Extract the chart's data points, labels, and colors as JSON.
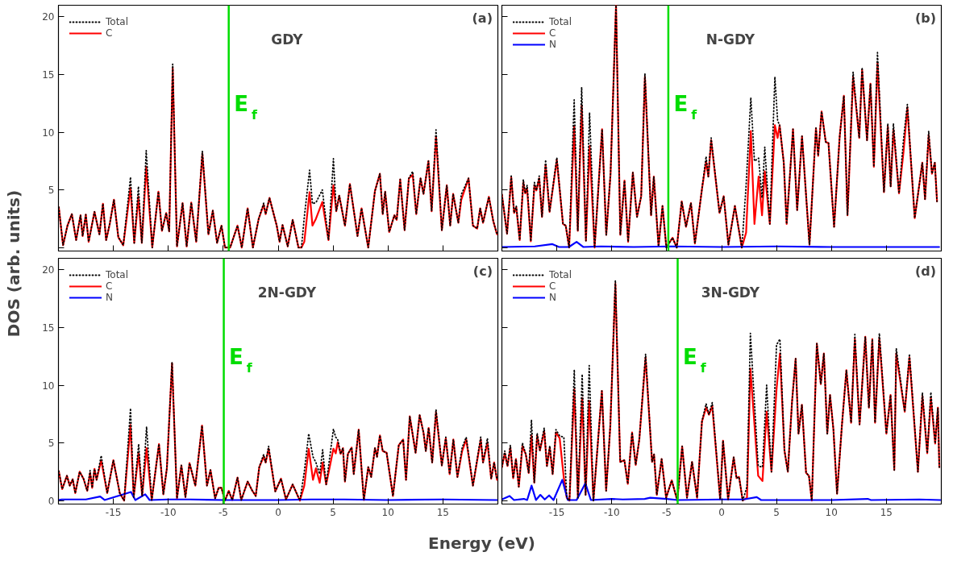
{
  "chart_data": [
    {
      "type": "line",
      "title": "GDY",
      "ylabel": "DOS (arb. units)",
      "annotations": [
        "(a)"
      ],
      "xlim": [
        -20,
        20
      ],
      "ylim": [
        -0.3,
        21
      ],
      "xticks": [
        -15,
        -10,
        -5,
        0,
        5,
        10,
        15
      ],
      "yticks": [
        {
          "value": 0,
          "label": null
        },
        5,
        10,
        15,
        20
      ],
      "tick_labels": "y",
      "legend": "top left",
      "grid": false,
      "ref_lines": [
        {
          "axis": "x",
          "value": -4.5,
          "label": "E$_{f}$",
          "color": "#00dd00"
        }
      ],
      "x": [
        -19.97,
        -19.58,
        -19.18,
        -18.78,
        -18.39,
        -17.99,
        -17.8,
        -17.51,
        -17.25,
        -16.72,
        -16.27,
        -15.95,
        -15.66,
        -15.34,
        -14.95,
        -14.55,
        -14.1,
        -13.44,
        -13.1,
        -12.72,
        -12.41,
        -12.01,
        -11.46,
        -10.9,
        -10.58,
        -10.19,
        -9.92,
        -9.6,
        -9.21,
        -8.7,
        -8.33,
        -7.91,
        -7.46,
        -6.9,
        -6.35,
        -5.95,
        -5.56,
        -5.16,
        -4.84,
        -4.37,
        -3.7,
        -3.31,
        -2.78,
        -2.3,
        -1.77,
        -1.32,
        -1.14,
        -0.79,
        -0.13,
        0.13,
        0.4,
        0.87,
        1.32,
        1.85,
        2.12,
        2.38,
        2.86,
        3.12,
        3.44,
        4.02,
        4.58,
        5.03,
        5.29,
        5.56,
        6.08,
        6.53,
        7.01,
        7.22,
        7.59,
        8.2,
        8.81,
        9.26,
        9.52,
        9.74,
        10.11,
        10.58,
        10.79,
        11.11,
        11.51,
        11.9,
        12.25,
        12.57,
        12.96,
        13.23,
        13.68,
        13.97,
        14.37,
        14.9,
        15.35,
        15.66,
        15.93,
        16.4,
        16.67,
        17.33,
        17.73,
        18.12,
        18.39,
        18.65,
        19.18,
        19.58,
        19.92
      ],
      "series": [
        {
          "name": "Total",
          "color": "#000000",
          "line_style": "dotted",
          "values": [
            3.5,
            0.2,
            1.9,
            2.9,
            0.65,
            2.8,
            1.0,
            2.85,
            0.5,
            3.1,
            1.15,
            3.8,
            0.65,
            2.0,
            4.15,
            0.9,
            0.2,
            6.1,
            0.4,
            5.3,
            0.4,
            8.4,
            0.0,
            4.85,
            1.45,
            3.0,
            1.4,
            15.9,
            0.1,
            3.85,
            0.1,
            3.9,
            0.5,
            8.35,
            1.15,
            3.2,
            0.4,
            1.9,
            0,
            0,
            1.9,
            0,
            3.4,
            0,
            2.5,
            3.85,
            2.9,
            4.3,
            1.9,
            0.5,
            1.95,
            0.1,
            2.4,
            0,
            0,
            2.65,
            6.7,
            3.8,
            3.9,
            5.0,
            0.65,
            7.7,
            3.15,
            4.5,
            1.9,
            5.5,
            2.4,
            1.0,
            3.4,
            0,
            4.9,
            6.4,
            2.9,
            4.85,
            1.35,
            2.8,
            2.4,
            5.9,
            1.5,
            6.0,
            6.6,
            2.9,
            6.0,
            4.65,
            7.5,
            3.15,
            10.2,
            1.5,
            5.4,
            1.9,
            4.65,
            2.15,
            4.6,
            6.0,
            1.9,
            1.65,
            3.4,
            2.15,
            4.4,
            2.3,
            1.15
          ]
        },
        {
          "name": "C",
          "color": "#ff0000",
          "line_style": "solid",
          "values": [
            3.5,
            0.2,
            1.9,
            2.9,
            0.65,
            2.8,
            1.0,
            2.85,
            0.5,
            3.1,
            1.15,
            3.8,
            0.65,
            2.0,
            4.15,
            0.9,
            0.2,
            5.2,
            0.4,
            4.4,
            0.4,
            7.0,
            0.0,
            4.85,
            1.45,
            3.0,
            1.4,
            15.6,
            0.1,
            3.85,
            0.1,
            3.9,
            0.5,
            8.15,
            1.15,
            3.2,
            0.4,
            1.9,
            0,
            0,
            1.9,
            0,
            3.4,
            0,
            2.5,
            3.7,
            2.9,
            4.3,
            1.9,
            0.5,
            1.95,
            0.1,
            2.4,
            0,
            0,
            0.5,
            4.8,
            1.9,
            2.5,
            3.95,
            0.65,
            5.4,
            3.15,
            4.5,
            1.9,
            5.5,
            2.4,
            1.0,
            3.4,
            0,
            4.9,
            6.4,
            2.9,
            4.85,
            1.35,
            2.8,
            2.4,
            5.9,
            1.5,
            6.0,
            6.3,
            2.9,
            6.0,
            4.65,
            7.5,
            3.15,
            9.65,
            1.5,
            5.4,
            1.9,
            4.65,
            2.15,
            4.15,
            6.0,
            1.9,
            1.65,
            3.4,
            2.15,
            4.4,
            2.3,
            1.15
          ]
        }
      ]
    },
    {
      "type": "line",
      "title": "N-GDY",
      "annotations": [
        "(b)"
      ],
      "xlim": [
        -20,
        20
      ],
      "ylim": [
        -0.3,
        21
      ],
      "xticks": [
        -15,
        -10,
        -5,
        0,
        5,
        10,
        15
      ],
      "yticks": [
        0,
        5,
        10,
        15,
        20
      ],
      "tick_labels": false,
      "legend": "top left",
      "grid": false,
      "ref_lines": [
        {
          "axis": "x",
          "value": -4.85,
          "label": "E$_{f}$",
          "color": "#00dd00"
        }
      ],
      "x": [
        -20,
        -19.53,
        -19.15,
        -18.89,
        -18.69,
        -18.38,
        -18.05,
        -17.88,
        -17.7,
        -17.37,
        -17.04,
        -16.86,
        -16.6,
        -16.35,
        -16.02,
        -15.66,
        -15.0,
        -14.44,
        -14.19,
        -13.88,
        -13.42,
        -13.09,
        -12.74,
        -12.35,
        -12.02,
        -11.56,
        -10.88,
        -10.5,
        -10.11,
        -9.61,
        -9.22,
        -8.84,
        -8.51,
        -8.08,
        -7.7,
        -7.32,
        -6.98,
        -6.42,
        -6.17,
        -5.74,
        -5.38,
        -5.03,
        -4.47,
        -4.08,
        -3.63,
        -3.24,
        -2.79,
        -2.43,
        -1.77,
        -1.41,
        -1.21,
        -0.95,
        -0.19,
        0.19,
        0.62,
        1.21,
        1.84,
        2.23,
        2.66,
        2.99,
        3.37,
        3.68,
        3.93,
        4.39,
        4.85,
        5.1,
        5.28,
        5.66,
        5.92,
        6.5,
        6.88,
        7.32,
        8.0,
        8.59,
        8.79,
        9.1,
        9.48,
        9.73,
        10.24,
        10.75,
        11.13,
        11.46,
        11.97,
        12.53,
        12.79,
        13.24,
        13.55,
        13.86,
        14.19,
        14.78,
        15.13,
        15.39,
        15.64,
        16.15,
        16.56,
        16.91,
        17.58,
        18.27,
        18.52,
        18.85,
        19.15,
        19.41,
        19.61
      ],
      "series": [
        {
          "name": "Total",
          "color": "#000000",
          "line_style": "dotted",
          "values": [
            4.6,
            1.2,
            6.2,
            3.0,
            3.6,
            0.65,
            5.9,
            4.7,
            5.4,
            0.55,
            5.65,
            4.95,
            6.2,
            2.65,
            7.6,
            3.1,
            7.8,
            2.05,
            1.9,
            0,
            12.8,
            1.45,
            13.9,
            0.6,
            11.7,
            0,
            10.25,
            1.1,
            6.4,
            21,
            1.1,
            5.8,
            0.5,
            6.5,
            2.65,
            4.45,
            15.1,
            2.8,
            6.15,
            0.1,
            3.6,
            0,
            0.85,
            0,
            4.0,
            1.8,
            3.85,
            0.35,
            5.2,
            7.9,
            6.15,
            9.5,
            3.0,
            4.45,
            0.25,
            3.6,
            0,
            5.4,
            13.0,
            7.5,
            7.75,
            4.3,
            8.7,
            2.05,
            14.8,
            11.0,
            10.6,
            7.35,
            2.05,
            10.25,
            3.25,
            9.65,
            0.25,
            10.35,
            7.95,
            11.8,
            9.15,
            9.05,
            1.8,
            9.65,
            13.15,
            2.8,
            15.2,
            9.5,
            15.6,
            9.3,
            14.2,
            7.0,
            16.9,
            4.8,
            10.75,
            5.3,
            10.75,
            4.7,
            9.4,
            12.4,
            2.55,
            7.35,
            4.2,
            10.1,
            6.4,
            7.35,
            4.0
          ]
        },
        {
          "name": "C",
          "color": "#ff0000",
          "line_style": "solid",
          "values": [
            4.6,
            1.2,
            6.1,
            3.0,
            3.5,
            0.65,
            5.65,
            4.7,
            5.05,
            0.55,
            5.4,
            4.95,
            6.0,
            2.65,
            7.2,
            3.1,
            7.6,
            2.05,
            1.9,
            0,
            10.5,
            1.45,
            12.3,
            0.6,
            8.8,
            0,
            10.25,
            1.1,
            6.4,
            21,
            1.1,
            5.8,
            0.5,
            6.5,
            2.65,
            4.45,
            14.8,
            2.8,
            6.15,
            0.1,
            3.6,
            0,
            0.85,
            0,
            4.0,
            1.8,
            3.85,
            0.35,
            5.2,
            7.45,
            6.15,
            9.3,
            3.0,
            4.45,
            0.25,
            3.6,
            0,
            1.3,
            10.1,
            2.05,
            6.15,
            2.8,
            6.6,
            2.05,
            10.6,
            9.5,
            10.6,
            7.35,
            2.05,
            10.25,
            3.25,
            9.65,
            0.25,
            10.35,
            7.95,
            11.8,
            9.15,
            9.05,
            1.8,
            9.65,
            13.15,
            2.8,
            14.8,
            9.5,
            15.4,
            9.3,
            14.2,
            7.0,
            16.0,
            4.8,
            10.5,
            5.3,
            10.25,
            4.7,
            8.3,
            12.15,
            2.55,
            7.35,
            4.2,
            9.75,
            6.4,
            7.35,
            4.0
          ]
        },
        {
          "name": "N",
          "color": "#0000ff",
          "line_style": "solid",
          "x": [
            -20,
            -17,
            -15.4,
            -14.8,
            -13.9,
            -13.2,
            -12.6,
            -11,
            -8,
            -4.5,
            0,
            5,
            10,
            15,
            19.8
          ],
          "values": [
            0.05,
            0.1,
            0.3,
            0.05,
            0.05,
            0.5,
            0.05,
            0.1,
            0.05,
            0.1,
            0.05,
            0.1,
            0.05,
            0.05,
            0.05
          ]
        }
      ]
    },
    {
      "type": "line",
      "title": "2N-GDY",
      "xlabel": "Energy (eV)",
      "annotations": [
        "(c)"
      ],
      "xlim": [
        -20,
        20
      ],
      "ylim": [
        -0.3,
        21
      ],
      "xticks": [
        -15,
        -10,
        -5,
        0,
        5,
        10,
        15
      ],
      "yticks": [
        0,
        5,
        10,
        15,
        20
      ],
      "legend": "top left",
      "grid": false,
      "ref_lines": [
        {
          "axis": "x",
          "value": -4.95,
          "label": "E$_{f}$",
          "color": "#00dd00"
        }
      ],
      "x": [
        -19.97,
        -19.66,
        -19.23,
        -18.97,
        -18.7,
        -18.47,
        -18.07,
        -17.72,
        -17.38,
        -17.12,
        -16.93,
        -16.72,
        -16.53,
        -16.11,
        -15.56,
        -15.0,
        -14.42,
        -14.02,
        -13.44,
        -13.15,
        -12.7,
        -12.38,
        -11.98,
        -11.51,
        -10.85,
        -10.45,
        -10.13,
        -9.66,
        -9.21,
        -8.81,
        -8.44,
        -8.07,
        -7.54,
        -6.93,
        -6.48,
        -6.16,
        -5.74,
        -5.42,
        -5.16,
        -4.84,
        -4.5,
        -4.18,
        -3.7,
        -3.36,
        -2.78,
        -2.38,
        -2.04,
        -1.72,
        -1.32,
        -1.14,
        -0.87,
        -0.26,
        0.26,
        0.71,
        1.32,
        1.98,
        2.38,
        2.78,
        3.17,
        3.44,
        3.78,
        4.05,
        4.37,
        5.03,
        5.24,
        5.42,
        5.69,
        5.9,
        6.08,
        6.35,
        6.69,
        6.88,
        7.33,
        7.8,
        8.2,
        8.47,
        8.81,
        9.0,
        9.26,
        9.52,
        9.87,
        10.45,
        10.98,
        11.38,
        11.64,
        11.98,
        12.51,
        12.88,
        13.23,
        13.44,
        13.7,
        14.02,
        14.37,
        14.9,
        15.26,
        15.61,
        15.95,
        16.32,
        16.75,
        17.12,
        17.73,
        18.44,
        18.65,
        19.05,
        19.39,
        19.66,
        19.92
      ],
      "series": [
        {
          "name": "Total",
          "color": "#000000",
          "line_style": "dotted",
          "values": [
            2.55,
            1.0,
            2.15,
            1.3,
            1.85,
            0.65,
            2.5,
            1.9,
            0.85,
            2.6,
            1.1,
            2.75,
            1.8,
            3.9,
            0.65,
            3.5,
            0.65,
            0,
            8.0,
            0.3,
            4.9,
            0.4,
            6.4,
            0.05,
            4.9,
            0.55,
            2.8,
            12.0,
            0.2,
            3.05,
            0.3,
            3.25,
            1.3,
            6.5,
            1.3,
            2.65,
            0.2,
            1.1,
            1.1,
            0,
            0.85,
            0.05,
            2.0,
            0.05,
            1.65,
            0.9,
            0.4,
            2.9,
            4.0,
            3.3,
            4.7,
            0.8,
            1.9,
            0.1,
            1.4,
            0,
            2.5,
            5.8,
            3.8,
            3.3,
            2.3,
            4.4,
            1.4,
            6.2,
            5.5,
            5.3,
            4.05,
            4.55,
            1.65,
            4.05,
            4.6,
            2.3,
            6.15,
            0.05,
            2.9,
            2.05,
            4.55,
            3.8,
            5.65,
            4.3,
            4.15,
            0.4,
            4.8,
            5.3,
            1.8,
            7.3,
            4.15,
            7.4,
            5.9,
            4.3,
            6.3,
            3.3,
            7.9,
            3.05,
            5.5,
            2.3,
            5.3,
            2.05,
            4.6,
            5.5,
            1.3,
            5.5,
            3.3,
            5.4,
            1.9,
            3.3,
            1.8
          ]
        },
        {
          "name": "C",
          "color": "#ff0000",
          "line_style": "solid",
          "values": [
            2.55,
            1.0,
            2.15,
            1.3,
            1.85,
            0.65,
            2.5,
            1.9,
            0.85,
            2.4,
            1.1,
            2.75,
            1.8,
            3.5,
            0.65,
            3.5,
            0.65,
            0,
            6.55,
            0.3,
            4.15,
            0.4,
            4.55,
            0.05,
            4.9,
            0.55,
            2.8,
            11.9,
            0.2,
            3.05,
            0.3,
            3.25,
            1.3,
            6.5,
            1.3,
            2.65,
            0.2,
            1.1,
            1.1,
            0,
            0.85,
            0.05,
            2.0,
            0.05,
            1.65,
            0.9,
            0.4,
            2.9,
            3.8,
            3.3,
            4.5,
            0.8,
            1.9,
            0.1,
            1.4,
            0,
            1.3,
            4.5,
            1.8,
            2.8,
            1.55,
            3.3,
            1.4,
            4.5,
            4.1,
            5.05,
            4.05,
            4.55,
            1.65,
            4.05,
            4.6,
            2.3,
            6.15,
            0.05,
            2.9,
            2.05,
            4.55,
            3.8,
            5.65,
            4.3,
            4.15,
            0.4,
            4.8,
            5.3,
            1.8,
            7.3,
            4.15,
            7.4,
            5.9,
            4.3,
            6.3,
            3.3,
            7.65,
            3.05,
            5.4,
            2.3,
            5.3,
            2.05,
            4.3,
            5.3,
            1.3,
            5.3,
            3.3,
            5.05,
            1.9,
            3.3,
            1.8
          ]
        },
        {
          "name": "N",
          "color": "#0000ff",
          "line_style": "solid",
          "x": [
            -20,
            -19.7,
            -18,
            -17.5,
            -16.2,
            -15.8,
            -13.4,
            -13,
            -12.1,
            -11.7,
            -10,
            -8,
            -5,
            0,
            3,
            6,
            10,
            15,
            19.9
          ],
          "values": [
            0.05,
            0.1,
            0.1,
            0.1,
            0.35,
            0.05,
            0.75,
            0.05,
            0.55,
            0.05,
            0.1,
            0.1,
            0.05,
            0.05,
            0.1,
            0.1,
            0.05,
            0.1,
            0.05
          ]
        }
      ]
    },
    {
      "type": "line",
      "title": "3N-GDY",
      "annotations": [
        "(d)"
      ],
      "xlim": [
        -20,
        20
      ],
      "ylim": [
        -0.3,
        21
      ],
      "xticks": [
        -15,
        -10,
        -5,
        0,
        5,
        10,
        15
      ],
      "yticks": [
        0,
        5,
        10,
        15,
        20
      ],
      "tick_labels": "x",
      "legend": "top left",
      "grid": false,
      "ref_lines": [
        {
          "axis": "x",
          "value": -4.0,
          "label": "E$_{f}$",
          "color": "#00dd00"
        }
      ],
      "x": [
        -20.0,
        -19.74,
        -19.49,
        -19.23,
        -18.97,
        -18.72,
        -18.46,
        -18.13,
        -17.82,
        -17.56,
        -17.31,
        -17.05,
        -16.79,
        -16.54,
        -16.15,
        -15.9,
        -15.64,
        -15.38,
        -15.08,
        -14.74,
        -14.36,
        -14.1,
        -13.85,
        -13.41,
        -13.08,
        -12.69,
        -12.38,
        -12.05,
        -11.67,
        -10.9,
        -10.51,
        -10.13,
        -9.67,
        -9.23,
        -8.85,
        -8.54,
        -8.15,
        -7.82,
        -7.49,
        -6.92,
        -6.33,
        -6.15,
        -5.9,
        -5.46,
        -5.05,
        -4.54,
        -4.03,
        -3.59,
        -3.15,
        -2.69,
        -2.23,
        -1.79,
        -1.41,
        -1.15,
        -0.85,
        -0.13,
        0.13,
        0.59,
        1.1,
        1.36,
        1.59,
        1.92,
        2.31,
        2.62,
        3.33,
        3.72,
        4.1,
        4.54,
        5.0,
        5.31,
        5.72,
        6.03,
        6.41,
        6.74,
        7.0,
        7.31,
        7.69,
        7.95,
        8.21,
        8.67,
        9.03,
        9.31,
        9.62,
        9.87,
        10.18,
        10.51,
        10.95,
        11.36,
        11.79,
        12.13,
        12.56,
        13.08,
        13.41,
        13.72,
        13.97,
        14.36,
        15.0,
        15.38,
        15.72,
        15.9,
        16.67,
        17.1,
        17.87,
        18.28,
        18.72,
        19.05,
        19.44,
        19.69,
        19.82
      ],
      "series": [
        {
          "name": "Total",
          "color": "#000000",
          "line_style": "dotted",
          "values": [
            2.9,
            4.3,
            3.0,
            4.8,
            1.95,
            3.6,
            1.2,
            5.0,
            4.0,
            2.4,
            7.0,
            1.55,
            5.85,
            4.35,
            6.3,
            3.0,
            4.75,
            2.3,
            6.15,
            5.6,
            5.5,
            0.25,
            0,
            11.35,
            0.25,
            10.95,
            0.5,
            11.7,
            0,
            9.5,
            0.85,
            6.5,
            19.1,
            3.35,
            3.5,
            1.45,
            5.9,
            3.1,
            5.3,
            12.7,
            3.35,
            4.0,
            0.5,
            3.6,
            0.25,
            1.75,
            0,
            4.7,
            0.25,
            3.35,
            0.25,
            6.85,
            8.4,
            7.45,
            8.5,
            0.1,
            5.2,
            0.1,
            3.75,
            1.95,
            2.05,
            0,
            1.2,
            14.5,
            3.0,
            2.9,
            10.0,
            2.5,
            13.5,
            14.0,
            4.35,
            2.5,
            8.55,
            12.3,
            5.8,
            8.3,
            2.4,
            2.15,
            0,
            13.6,
            10.1,
            12.75,
            5.8,
            9.15,
            6.15,
            0.6,
            6.5,
            11.3,
            6.75,
            14.4,
            6.6,
            14.2,
            8.05,
            14.0,
            6.75,
            14.5,
            5.8,
            9.15,
            2.65,
            13.2,
            7.7,
            12.7,
            2.5,
            9.35,
            4.1,
            9.4,
            4.95,
            8.05,
            2.9
          ]
        },
        {
          "name": "C",
          "color": "#ff0000",
          "line_style": "solid",
          "values": [
            2.9,
            4.1,
            3.0,
            4.6,
            1.95,
            3.6,
            1.2,
            4.7,
            4.0,
            2.4,
            5.65,
            1.55,
            5.65,
            4.35,
            6.0,
            3.0,
            4.6,
            2.3,
            5.9,
            5.4,
            1.95,
            0.25,
            0,
            9.65,
            0.25,
            8.9,
            0.5,
            8.65,
            0,
            9.5,
            0.85,
            6.5,
            18.8,
            3.35,
            3.5,
            1.45,
            5.9,
            3.1,
            5.3,
            12.4,
            3.35,
            4.0,
            0.5,
            3.6,
            0.25,
            1.75,
            0,
            4.7,
            0.25,
            3.35,
            0.25,
            6.85,
            8.05,
            7.45,
            8.2,
            0.1,
            5.2,
            0.1,
            3.75,
            1.95,
            2.05,
            0,
            0.25,
            11.45,
            2.15,
            1.7,
            7.7,
            2.5,
            9.65,
            12.75,
            4.35,
            2.5,
            8.55,
            12.3,
            5.8,
            8.3,
            2.4,
            2.15,
            0,
            13.6,
            10.1,
            12.75,
            5.8,
            9.15,
            6.15,
            0.6,
            6.5,
            11.3,
            6.75,
            14.0,
            6.6,
            14.2,
            8.05,
            14.0,
            6.75,
            14.1,
            5.8,
            9.15,
            2.65,
            12.75,
            7.7,
            12.4,
            2.5,
            9.05,
            4.1,
            8.9,
            4.95,
            8.05,
            2.9
          ]
        },
        {
          "name": "N",
          "color": "#0000ff",
          "line_style": "solid",
          "x": [
            -20,
            -19.3,
            -18.9,
            -18,
            -17.7,
            -17.3,
            -16.9,
            -16.5,
            -16.1,
            -15.7,
            -15.3,
            -14.5,
            -14,
            -13.2,
            -12.4,
            -11.9,
            -10,
            -9,
            -7,
            -6.5,
            -5,
            -4,
            0,
            2,
            3.2,
            3.6,
            10,
            13.3,
            13.6,
            18,
            19.9
          ],
          "values": [
            0.1,
            0.4,
            0.05,
            0.15,
            0.05,
            1.3,
            0.05,
            0.5,
            0.1,
            0.45,
            0.05,
            1.8,
            0.05,
            0.05,
            1.5,
            0.05,
            0.15,
            0.1,
            0.15,
            0.25,
            0.15,
            0.05,
            0.1,
            0.1,
            0.3,
            0.05,
            0.05,
            0.15,
            0.05,
            0.1,
            0.05
          ]
        }
      ]
    }
  ]
}
